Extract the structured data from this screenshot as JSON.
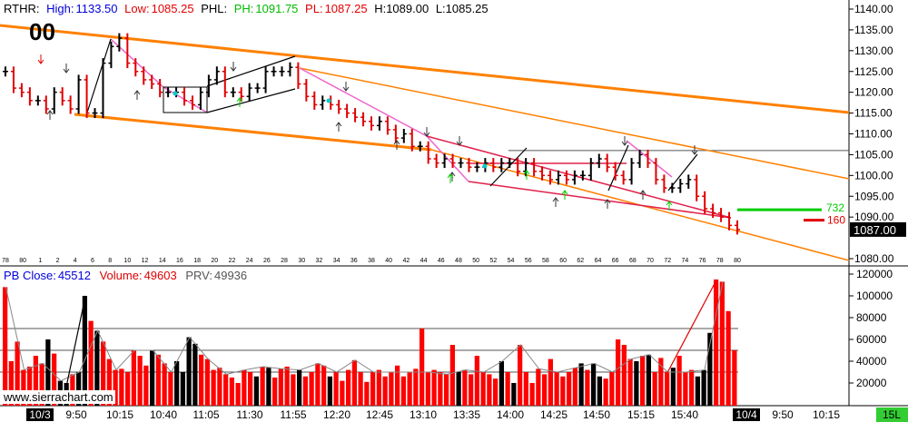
{
  "header": {
    "symbol": "RTHR:",
    "high_label": "High:",
    "high": "1133.50",
    "low_label": "Low:",
    "low": "1085.25",
    "phl_label": "PHL:",
    "ph_label": "PH:",
    "ph": "1091.75",
    "pl_label": "PL:",
    "pl": "1087.25",
    "h_text": "H:1089.00",
    "l_text": "L:1085.25"
  },
  "big_label": "00",
  "subheader": {
    "pb_close_label": "PB Close:",
    "pb_close": "45512",
    "volume_label": "Volume:",
    "volume": "49603",
    "prv_label": "PRV:",
    "prv": "49936"
  },
  "watermark": "www.sierrachart.com",
  "right_labels": {
    "green": "732",
    "red": "160",
    "last": "1087.00",
    "corner": "15L"
  },
  "colors": {
    "up": "#000000",
    "down": "#e00000",
    "orange": "#ff8000",
    "pink": "#ee66cc",
    "green": "#00cc00",
    "cyan": "#00cccc"
  },
  "chart_data": [
    {
      "type": "ohlc",
      "ylim": [
        1080,
        1140
      ],
      "y_ticks": [
        "1140.00",
        "1135.00",
        "1130.00",
        "1125.00",
        "1120.00",
        "1115.00",
        "1110.00",
        "1105.00",
        "1100.00",
        "1095.00",
        "1090.00",
        "1087.00",
        "1080.00"
      ],
      "bar_index_labels": [
        "78",
        "80",
        "1",
        "2",
        "4",
        "6",
        "8",
        "10",
        "12",
        "14",
        "16",
        "18",
        "20",
        "22",
        "24",
        "26",
        "28",
        "30",
        "32",
        "34",
        "36",
        "38",
        "40",
        "42",
        "44",
        "46",
        "48",
        "50",
        "52",
        "54",
        "56",
        "58",
        "60",
        "62",
        "64",
        "66",
        "68",
        "70",
        "72",
        "74",
        "76",
        "78",
        "80"
      ],
      "closes": [
        1125,
        1121,
        1120,
        1118,
        1118,
        1116,
        1120,
        1118,
        1116,
        1123,
        1115,
        1115,
        1127,
        1131,
        1133,
        1127,
        1125,
        1123,
        1122,
        1120,
        1120,
        1120,
        1118,
        1117,
        1120,
        1123,
        1125,
        1120,
        1120,
        1119,
        1121,
        1121,
        1125,
        1125,
        1125,
        1126,
        1122,
        1119,
        1117,
        1118,
        1117,
        1116,
        1115,
        1114,
        1113,
        1112,
        1113,
        1111,
        1109,
        1110,
        1107,
        1107,
        1104,
        1103,
        1104,
        1103,
        1103,
        1102,
        1102,
        1103,
        1102,
        1103,
        1103,
        1101,
        1103,
        1101,
        1100,
        1099,
        1100,
        1099,
        1100,
        1100,
        1103,
        1104,
        1102,
        1100,
        1099,
        1103,
        1105,
        1103,
        1099,
        1097,
        1097,
        1098,
        1099,
        1095,
        1092,
        1091,
        1090,
        1088,
        1087
      ],
      "last_price": "1087.00"
    },
    {
      "type": "bar",
      "ylim": [
        0,
        120000
      ],
      "y_ticks": [
        "120000",
        "100000",
        "80000",
        "60000",
        "40000",
        "20000"
      ],
      "time_labels": [
        "10/3",
        "9:50",
        "10:15",
        "10:40",
        "11:05",
        "11:30",
        "11:55",
        "12:20",
        "12:45",
        "13:10",
        "13:35",
        "14:00",
        "14:25",
        "14:50",
        "15:15",
        "15:40",
        "10/4",
        "9:50",
        "10:15"
      ],
      "volume": [
        108000,
        40000,
        58000,
        32000,
        35000,
        45000,
        38000,
        60000,
        47000,
        22000,
        20000,
        28000,
        30000,
        100000,
        77000,
        68000,
        58000,
        42000,
        32000,
        33000,
        30000,
        50000,
        45000,
        36000,
        50000,
        46000,
        38000,
        30000,
        40000,
        30000,
        62000,
        56000,
        46000,
        42000,
        32000,
        34000,
        28000,
        25000,
        20000,
        32000,
        30000,
        26000,
        35000,
        34000,
        25000,
        33000,
        35000,
        28000,
        32000,
        26000,
        30000,
        38000,
        36000,
        26000,
        30000,
        22000,
        32000,
        41000,
        30000,
        21000,
        30000,
        32000,
        26000,
        30000,
        36000,
        26000,
        30000,
        33000,
        70000,
        30000,
        32000,
        30000,
        28000,
        55000,
        30000,
        32000,
        28000,
        45000,
        30000,
        28000,
        24000,
        40000,
        30000,
        20000,
        55000,
        30000,
        20000,
        33000,
        28000,
        42000,
        30000,
        26000,
        30000,
        34000,
        38000,
        32000,
        38000,
        26000,
        24000,
        30000,
        60000,
        55000,
        42000,
        40000,
        45000,
        46000,
        30000,
        43000,
        30000,
        34000,
        45000,
        30000,
        32000,
        26000,
        32000,
        66000,
        115000,
        113000,
        86000,
        50000
      ],
      "up_flags": [
        0,
        0,
        0,
        0,
        0,
        0,
        0,
        1,
        0,
        1,
        1,
        0,
        1,
        1,
        0,
        1,
        0,
        0,
        0,
        0,
        0,
        0,
        0,
        0,
        1,
        0,
        0,
        0,
        1,
        1,
        1,
        1,
        0,
        0,
        0,
        0,
        0,
        0,
        0,
        0,
        0,
        1,
        0,
        1,
        0,
        0,
        0,
        0,
        1,
        0,
        0,
        0,
        0,
        1,
        0,
        0,
        0,
        0,
        0,
        0,
        0,
        0,
        0,
        0,
        0,
        0,
        0,
        0,
        0,
        0,
        0,
        0,
        0,
        0,
        1,
        0,
        0,
        0,
        0,
        0,
        0,
        1,
        0,
        1,
        0,
        0,
        0,
        0,
        0,
        0,
        0,
        0,
        0,
        0,
        1,
        0,
        1,
        1,
        0,
        0,
        0,
        0,
        0,
        1,
        0,
        1,
        0,
        0,
        0,
        1,
        0,
        0,
        0,
        1,
        1,
        1,
        0,
        0,
        0,
        0
      ]
    }
  ]
}
